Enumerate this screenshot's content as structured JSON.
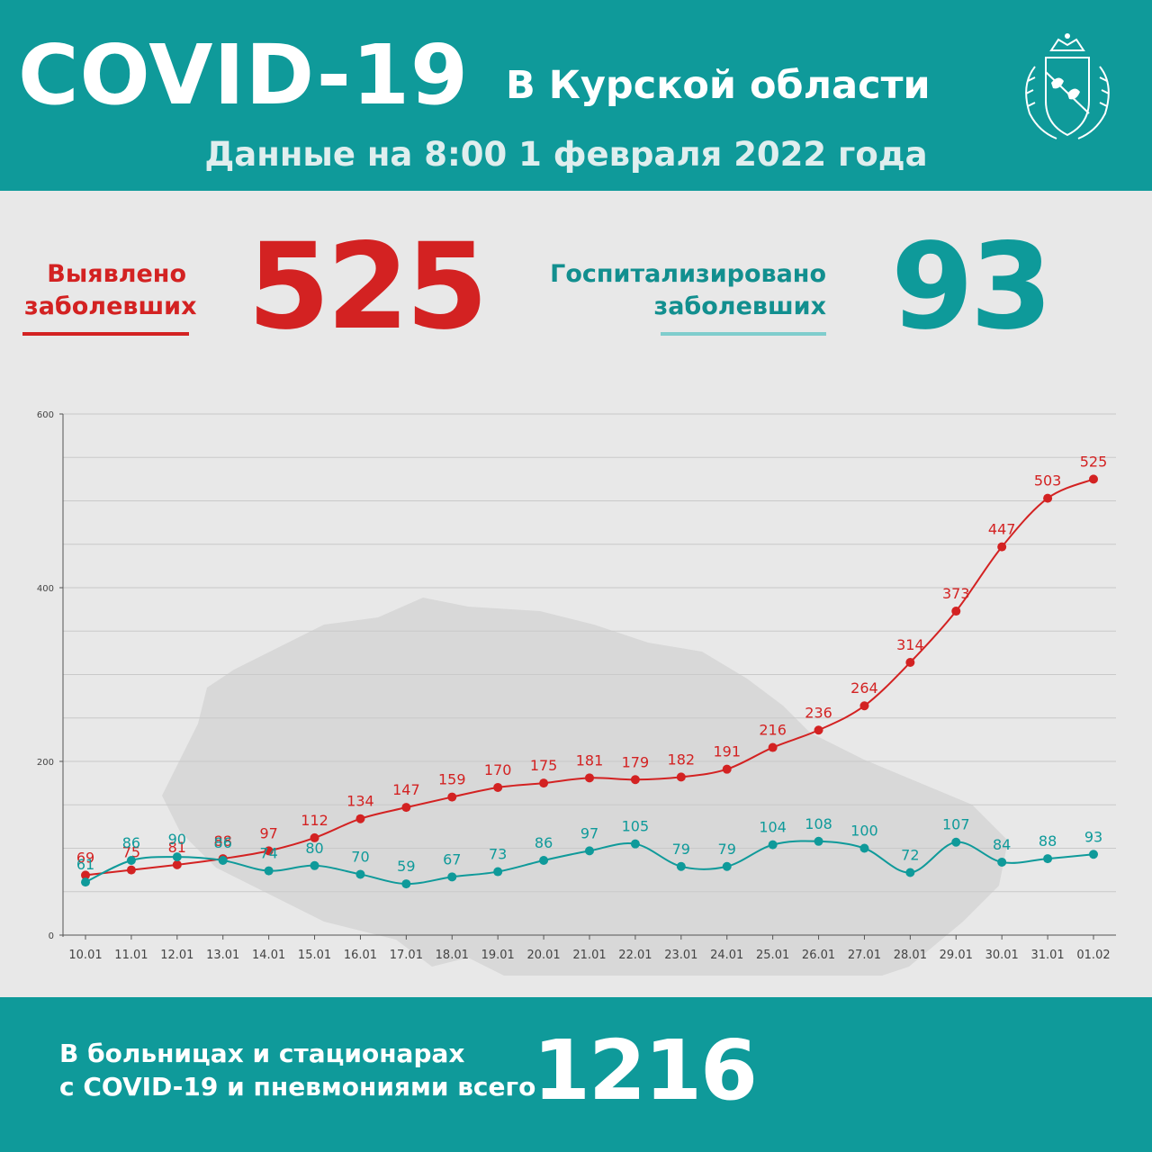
{
  "header": {
    "title": "COVID-19",
    "region": "В Курской области",
    "date": "Данные на 8:00 1 февраля 2022 года"
  },
  "stats": {
    "cases_label_line1": "Выявлено",
    "cases_label_line2": "заболевших",
    "cases_value": "525",
    "hosp_label_line1": "Госпитализировано",
    "hosp_label_line2": "заболевших",
    "hosp_value": "93"
  },
  "footer": {
    "line1": "В больницах и стационарах",
    "line2": "с COVID-19 и пневмониями всего",
    "value": "1216"
  },
  "colors": {
    "teal": "#0f9a9a",
    "red": "#d32222",
    "background": "#e8e8e8"
  },
  "chart_data": {
    "type": "line",
    "categories": [
      "10.01",
      "11.01",
      "12.01",
      "13.01",
      "14.01",
      "15.01",
      "16.01",
      "17.01",
      "18.01",
      "19.01",
      "20.01",
      "21.01",
      "22.01",
      "23.01",
      "24.01",
      "25.01",
      "26.01",
      "27.01",
      "28.01",
      "29.01",
      "30.01",
      "31.01",
      "01.02"
    ],
    "series": [
      {
        "values": [
          69,
          75,
          81,
          88,
          97,
          112,
          134,
          147,
          159,
          170,
          175,
          181,
          179,
          182,
          191,
          216,
          236,
          264,
          314,
          373,
          447,
          503,
          525
        ],
        "color": "#d32222"
      },
      {
        "values": [
          61,
          86,
          90,
          86,
          74,
          80,
          70,
          59,
          67,
          73,
          86,
          97,
          105,
          79,
          79,
          104,
          108,
          100,
          72,
          107,
          84,
          88,
          93
        ],
        "color": "#0f9a9a"
      }
    ],
    "yticks": [
      0,
      200,
      400,
      600
    ],
    "ylim": [
      0,
      600
    ],
    "grid": true,
    "legend": "none"
  }
}
